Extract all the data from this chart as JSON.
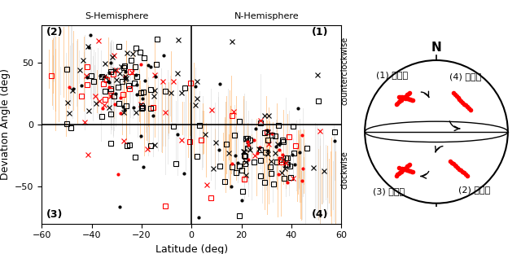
{
  "xlabel": "Latitude (deg)",
  "ylabel": "Deviation Angle (deg)",
  "xlim": [
    -60,
    60
  ],
  "ylim": [
    -80,
    80
  ],
  "s_hemisphere_label": "S-Hemisphere",
  "n_hemisphere_label": "N-Hemisphere",
  "counterclockwise_label": "counterclockwise",
  "clockwise_label": "clockwise",
  "q_labels": [
    "(1)",
    "(2)",
    "(3)",
    "(4)"
  ],
  "right_labels": [
    "(1) 少数派",
    "(4) 多数派",
    "(3) 少数派",
    "(2) 多数派"
  ],
  "background_color": "#ffffff"
}
